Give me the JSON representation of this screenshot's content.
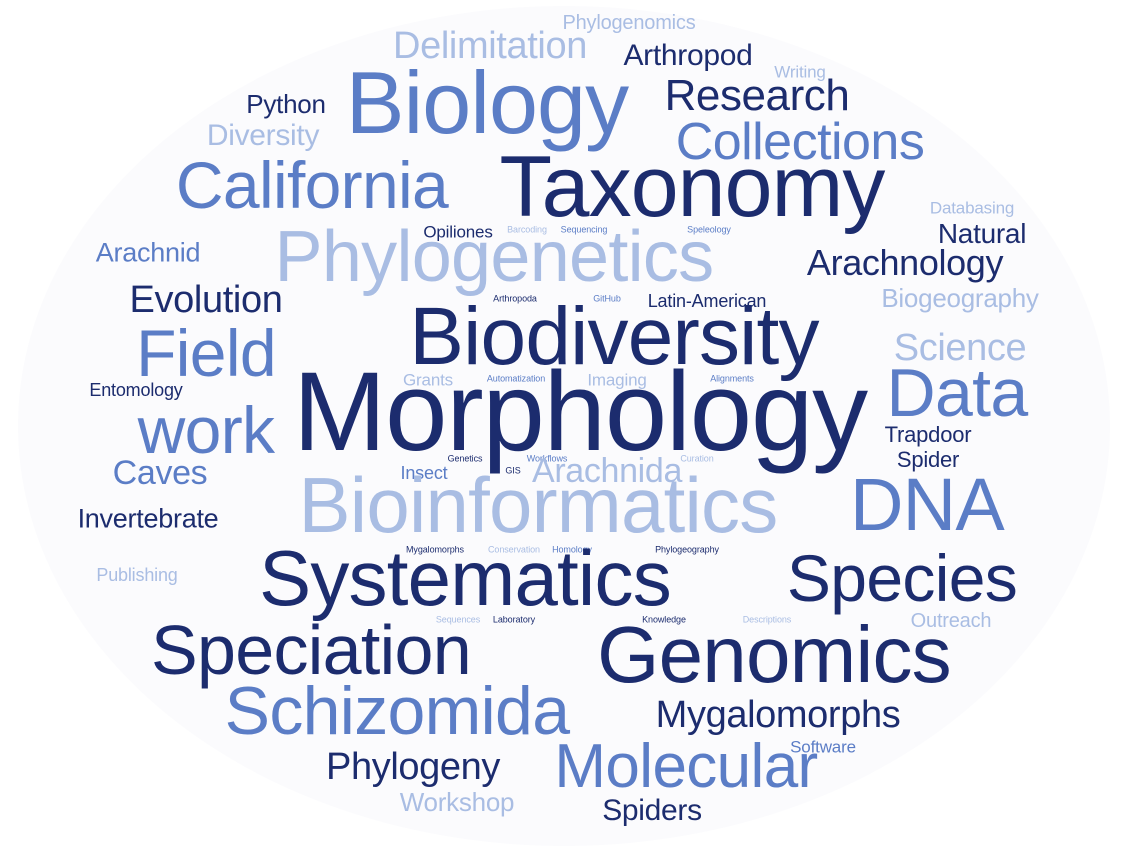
{
  "colors": {
    "dark": "#1c2c6e",
    "mid": "#5b7dc6",
    "light": "#a9bde3",
    "background": "#fbfbfd"
  },
  "words": [
    "Phylogenomics",
    "Delimitation",
    "Arthropod",
    "Writing",
    "Biology",
    "Research",
    "Python",
    "Diversity",
    "Collections",
    "California",
    "Taxonomy",
    "Databasing",
    "Opiliones",
    "Barcoding",
    "Sequencing",
    "Speleology",
    "Natural",
    "Arachnid",
    "Phylogenetics",
    "Arachnology",
    "Evolution",
    "Arthropoda",
    "GitHub",
    "Latin-American",
    "Biogeography",
    "Field",
    "Biodiversity",
    "Science",
    "Entomology",
    "Grants",
    "Automatization",
    "Imaging",
    "Alignments",
    "Data",
    "Morphology",
    "work",
    "Trapdoor",
    "Spider",
    "Genetics",
    "Workflows",
    "Curation",
    "Caves",
    "Insect",
    "GIS",
    "Arachnida",
    "Bioinformatics",
    "DNA",
    "Invertebrate",
    "Mygalomorphs",
    "Conservation",
    "Homology",
    "Phylogeography",
    "Publishing",
    "Systematics",
    "Species",
    "Sequences",
    "Laboratory",
    "Knowledge",
    "Descriptions",
    "Outreach",
    "Speciation",
    "Genomics",
    "Schizomida",
    "Mygalomorphs",
    "Software",
    "Phylogeny",
    "Molecular",
    "Workshop",
    "Spiders"
  ]
}
